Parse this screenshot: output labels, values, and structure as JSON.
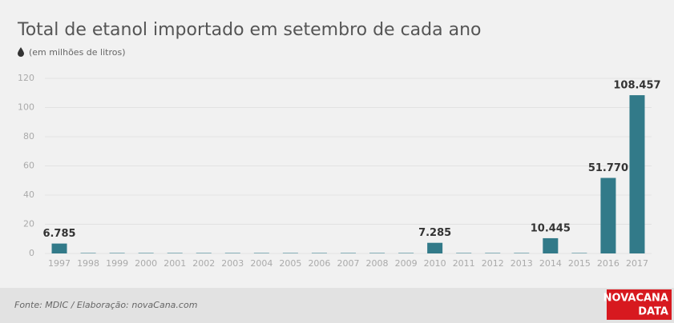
{
  "chart_data": {
    "type": "bar",
    "title": "Total de etanol importado em setembro de cada ano",
    "subtitle": "(em milhões de litros)",
    "categories": [
      "1997",
      "1998",
      "1999",
      "2000",
      "2001",
      "2002",
      "2003",
      "2004",
      "2005",
      "2006",
      "2007",
      "2008",
      "2009",
      "2010",
      "2011",
      "2012",
      "2013",
      "2014",
      "2015",
      "2016",
      "2017"
    ],
    "values": [
      6.785,
      0.3,
      0.3,
      0.3,
      0.3,
      0.3,
      0.3,
      0.3,
      0.3,
      0.3,
      0.3,
      0.3,
      0.3,
      7.285,
      0.3,
      0.3,
      0.3,
      10.445,
      0.3,
      51.77,
      108.457
    ],
    "value_labels": [
      "6.785",
      null,
      null,
      null,
      null,
      null,
      null,
      null,
      null,
      null,
      null,
      null,
      null,
      "7.285",
      null,
      null,
      null,
      "10.445",
      null,
      "51.770",
      "108.457"
    ],
    "color": "#327a89",
    "ylim": [
      0,
      120
    ],
    "yticks": [
      0,
      20,
      40,
      60,
      80,
      100,
      120
    ],
    "grid": true,
    "source": "Fonte: MDIC / Elaboração: novaCana.com",
    "logo": [
      "NOVACANA",
      "DATA"
    ]
  }
}
